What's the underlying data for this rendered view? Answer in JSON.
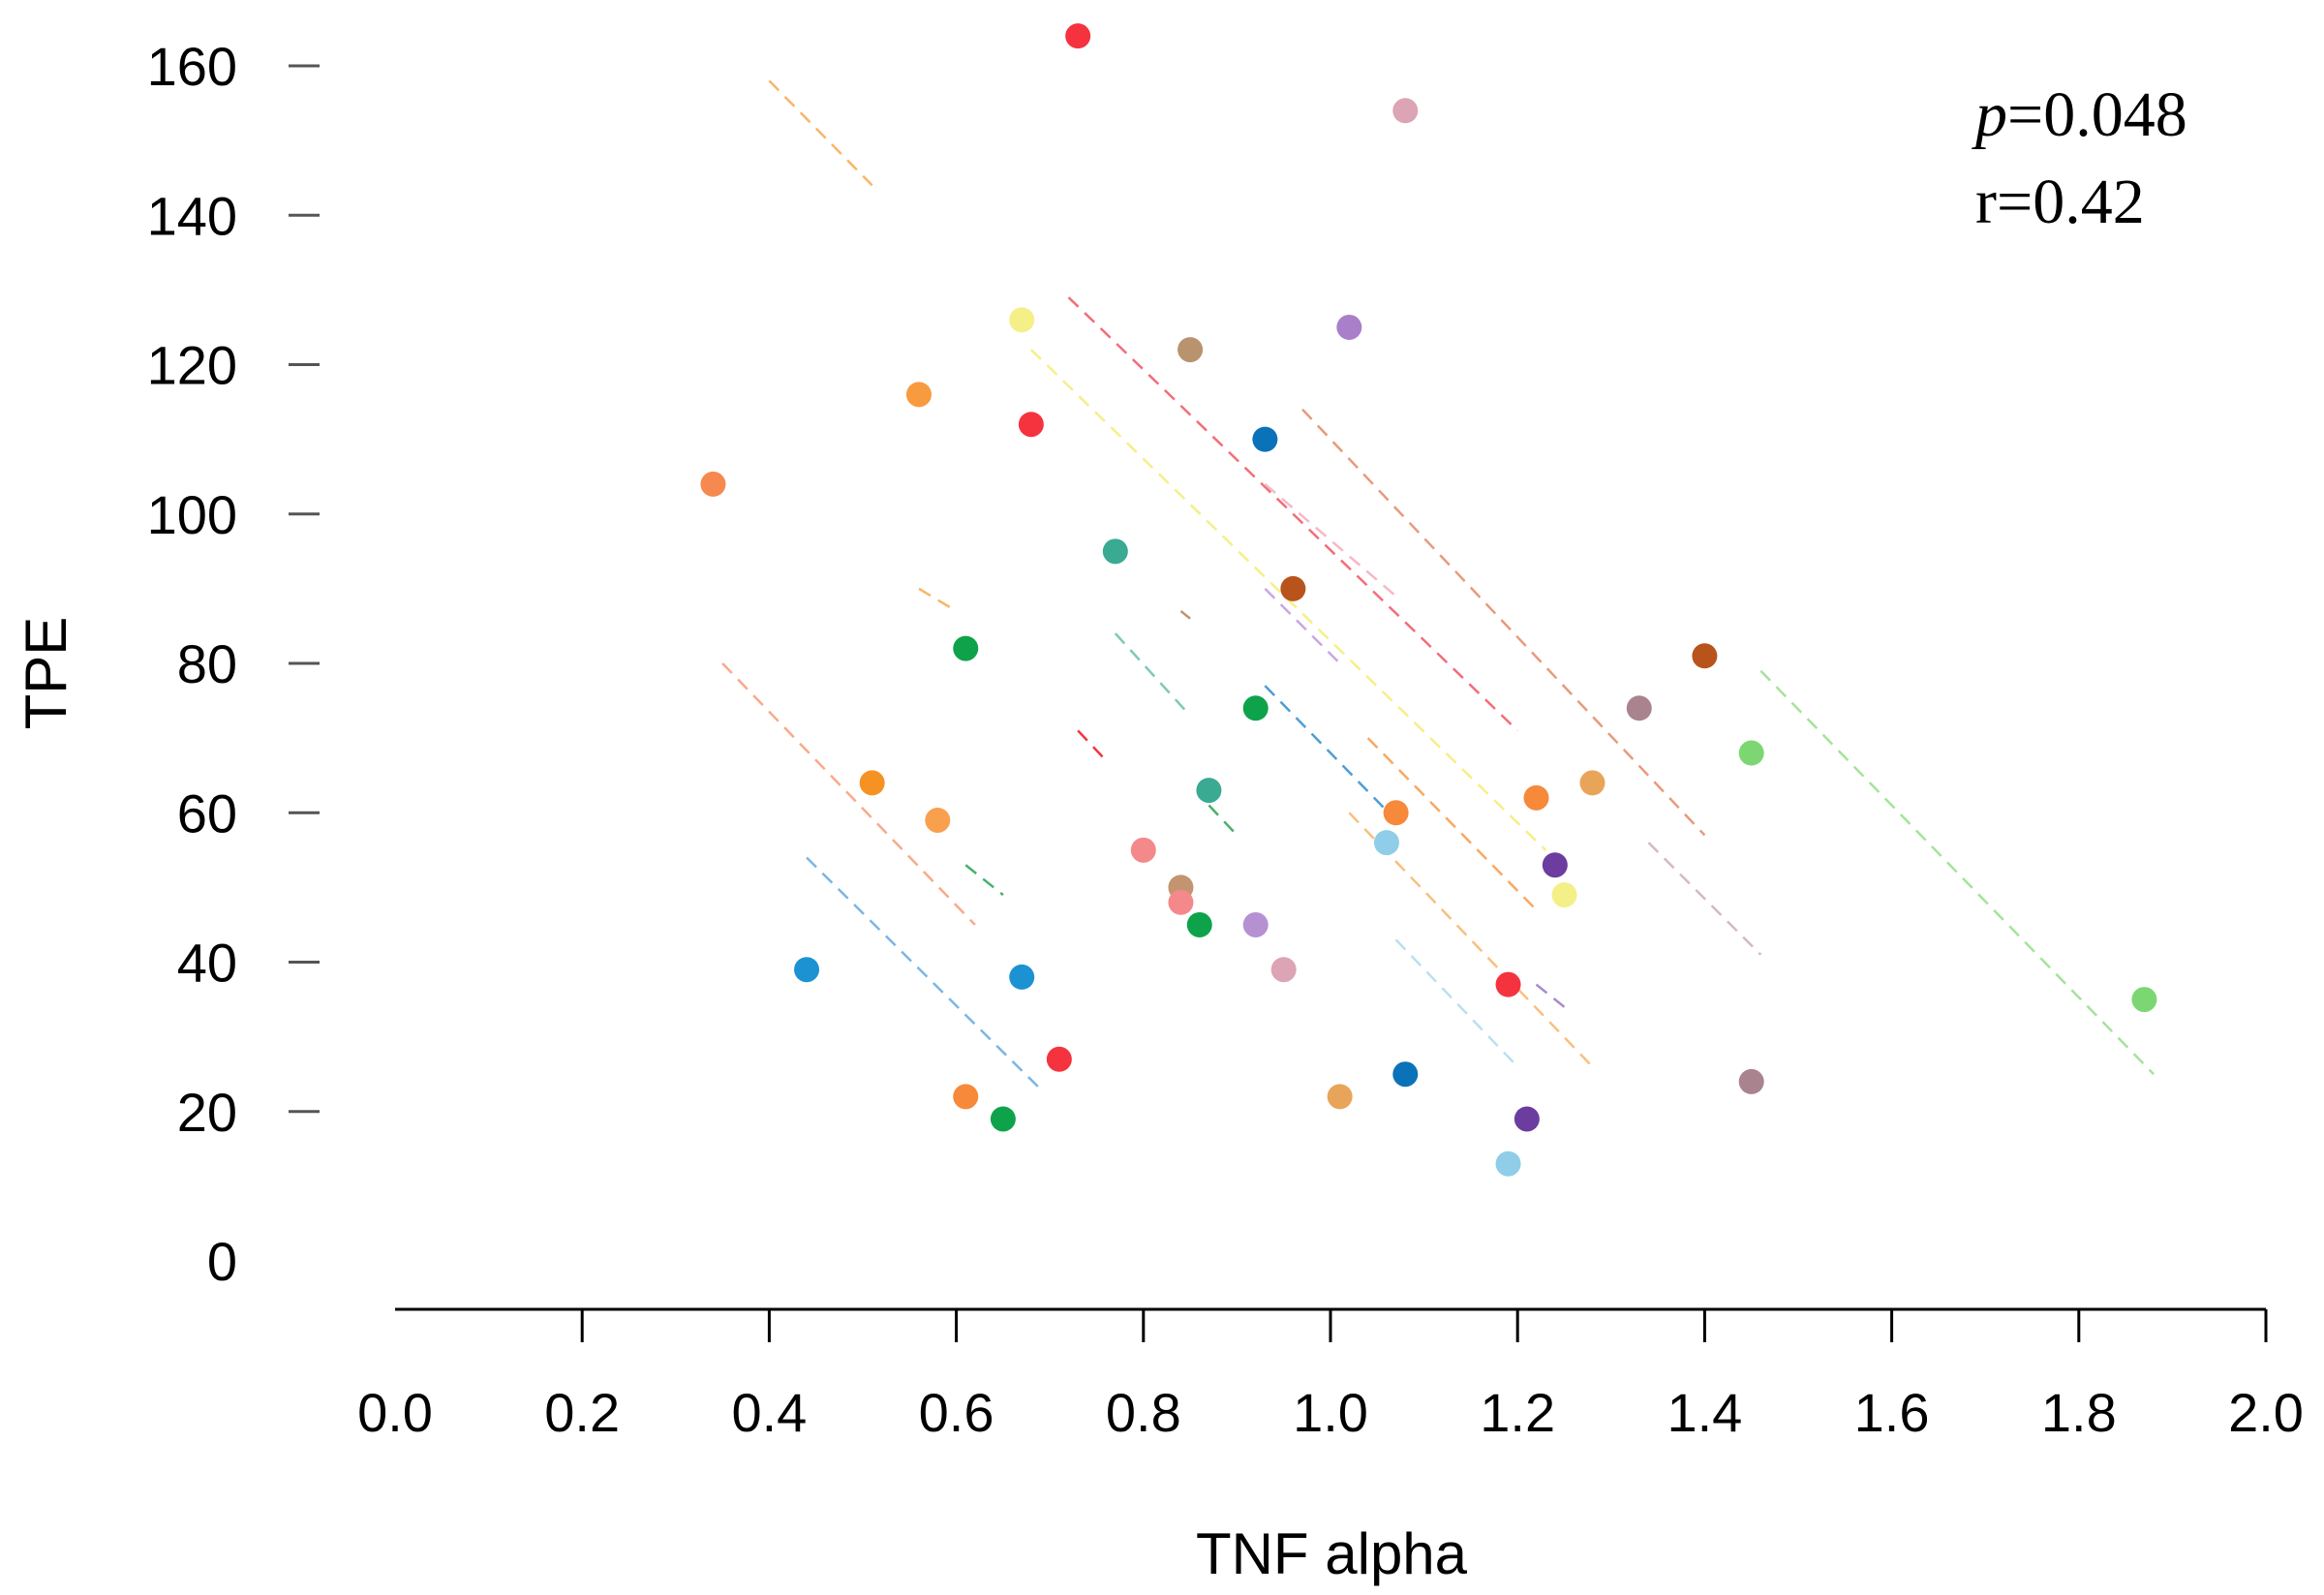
{
  "chart_data": {
    "type": "scatter",
    "title": "",
    "xlabel": "TNF alpha",
    "ylabel": "TPE",
    "xlim": [
      0.0,
      2.0
    ],
    "ylim": [
      0,
      160
    ],
    "x_ticks": [
      "0.0",
      "0.2",
      "0.4",
      "0.6",
      "0.8",
      "1.0",
      "1.2",
      "1.4",
      "1.6",
      "1.8",
      "2.0"
    ],
    "y_ticks": [
      "0",
      "20",
      "40",
      "60",
      "80",
      "100",
      "120",
      "140",
      "160"
    ],
    "grid": false,
    "annotations": {
      "p_symbol": "p",
      "p_value": "=0.048",
      "r_text": "r=0.42"
    },
    "points": [
      {
        "x": 0.73,
        "y": 164,
        "color": "#f5333f"
      },
      {
        "x": 1.08,
        "y": 154,
        "color": "#dca4b4"
      },
      {
        "x": 0.67,
        "y": 126,
        "color": "#f5ef88"
      },
      {
        "x": 1.02,
        "y": 125,
        "color": "#a97fc9"
      },
      {
        "x": 0.85,
        "y": 122,
        "color": "#b9926e"
      },
      {
        "x": 0.56,
        "y": 116,
        "color": "#f89a3e"
      },
      {
        "x": 0.68,
        "y": 112,
        "color": "#f5333f"
      },
      {
        "x": 0.93,
        "y": 110,
        "color": "#0a72b8"
      },
      {
        "x": 0.34,
        "y": 104,
        "color": "#f6894f"
      },
      {
        "x": 0.77,
        "y": 95,
        "color": "#3aaa93"
      },
      {
        "x": 0.96,
        "y": 90,
        "color": "#b8541b"
      },
      {
        "x": 0.61,
        "y": 82,
        "color": "#0ea34a"
      },
      {
        "x": 1.4,
        "y": 81,
        "color": "#b8541b"
      },
      {
        "x": 0.92,
        "y": 74,
        "color": "#0ea34a"
      },
      {
        "x": 1.33,
        "y": 74,
        "color": "#a9838e"
      },
      {
        "x": 1.45,
        "y": 68,
        "color": "#7cd772"
      },
      {
        "x": 0.51,
        "y": 64,
        "color": "#f69224"
      },
      {
        "x": 1.28,
        "y": 64,
        "color": "#e8a55a"
      },
      {
        "x": 0.87,
        "y": 63,
        "color": "#3aaa93"
      },
      {
        "x": 1.22,
        "y": 62,
        "color": "#f6893a"
      },
      {
        "x": 1.07,
        "y": 60,
        "color": "#f6893a"
      },
      {
        "x": 0.58,
        "y": 59,
        "color": "#f9a04f"
      },
      {
        "x": 1.06,
        "y": 56,
        "color": "#8fcde8"
      },
      {
        "x": 0.8,
        "y": 55,
        "color": "#f4898b"
      },
      {
        "x": 1.24,
        "y": 53,
        "color": "#6c3c9f"
      },
      {
        "x": 0.84,
        "y": 50,
        "color": "#c29470"
      },
      {
        "x": 1.25,
        "y": 49,
        "color": "#f5ef88"
      },
      {
        "x": 0.84,
        "y": 48,
        "color": "#f4898b"
      },
      {
        "x": 0.86,
        "y": 45,
        "color": "#0ea34a"
      },
      {
        "x": 0.92,
        "y": 45,
        "color": "#b691d2"
      },
      {
        "x": 0.95,
        "y": 39,
        "color": "#dca4b4"
      },
      {
        "x": 0.44,
        "y": 39,
        "color": "#1c92d3"
      },
      {
        "x": 0.67,
        "y": 38,
        "color": "#1c92d3"
      },
      {
        "x": 1.19,
        "y": 37,
        "color": "#f5333f"
      },
      {
        "x": 1.87,
        "y": 35,
        "color": "#7cd772"
      },
      {
        "x": 0.71,
        "y": 27,
        "color": "#f5333f"
      },
      {
        "x": 1.08,
        "y": 25,
        "color": "#0a72b8"
      },
      {
        "x": 1.45,
        "y": 24,
        "color": "#a9838e"
      },
      {
        "x": 0.61,
        "y": 22,
        "color": "#f6893a"
      },
      {
        "x": 1.01,
        "y": 22,
        "color": "#e8a55a"
      },
      {
        "x": 1.21,
        "y": 19,
        "color": "#6c3c9f"
      },
      {
        "x": 0.65,
        "y": 19,
        "color": "#0ea34a"
      },
      {
        "x": 1.19,
        "y": 13,
        "color": "#8fcde8"
      }
    ],
    "dashed_lines": [
      {
        "x1": 0.4,
        "y1": 158,
        "x2": 0.51,
        "y2": 144,
        "color": "#f9b56a"
      },
      {
        "x1": 0.72,
        "y1": 129,
        "x2": 1.2,
        "y2": 71,
        "color": "#f26d78"
      },
      {
        "x1": 0.68,
        "y1": 122,
        "x2": 1.23,
        "y2": 55,
        "color": "#f5ef88"
      },
      {
        "x1": 0.97,
        "y1": 114,
        "x2": 1.4,
        "y2": 57,
        "color": "#e89a7c"
      },
      {
        "x1": 0.93,
        "y1": 104,
        "x2": 1.07,
        "y2": 89,
        "color": "#f4b9c4"
      },
      {
        "x1": 0.56,
        "y1": 90,
        "x2": 0.6,
        "y2": 87,
        "color": "#f9b56a"
      },
      {
        "x1": 0.84,
        "y1": 87,
        "x2": 0.85,
        "y2": 86,
        "color": "#c29470"
      },
      {
        "x1": 0.77,
        "y1": 84,
        "x2": 0.85,
        "y2": 73,
        "color": "#7ec9b7"
      },
      {
        "x1": 0.93,
        "y1": 90,
        "x2": 1.01,
        "y2": 80,
        "color": "#c8a8e0"
      },
      {
        "x1": 0.35,
        "y1": 80,
        "x2": 0.62,
        "y2": 45,
        "color": "#f9a98a"
      },
      {
        "x1": 0.73,
        "y1": 71,
        "x2": 0.76,
        "y2": 67,
        "color": "#f5333f"
      },
      {
        "x1": 0.93,
        "y1": 77,
        "x2": 1.07,
        "y2": 59,
        "color": "#4d9ed3"
      },
      {
        "x1": 1.04,
        "y1": 70,
        "x2": 1.22,
        "y2": 47,
        "color": "#f9a860"
      },
      {
        "x1": 0.87,
        "y1": 61,
        "x2": 0.9,
        "y2": 57,
        "color": "#4ab06b"
      },
      {
        "x1": 1.46,
        "y1": 79,
        "x2": 1.88,
        "y2": 25,
        "color": "#a4e39a"
      },
      {
        "x1": 0.61,
        "y1": 53,
        "x2": 0.65,
        "y2": 49,
        "color": "#4ab06b"
      },
      {
        "x1": 1.34,
        "y1": 56,
        "x2": 1.46,
        "y2": 41,
        "color": "#d4b8c8"
      },
      {
        "x1": 1.02,
        "y1": 60,
        "x2": 1.28,
        "y2": 26,
        "color": "#f9bf80"
      },
      {
        "x1": 0.44,
        "y1": 54,
        "x2": 0.69,
        "y2": 23,
        "color": "#7ab6e6"
      },
      {
        "x1": 1.07,
        "y1": 43,
        "x2": 1.2,
        "y2": 26,
        "color": "#b8e0f0"
      },
      {
        "x1": 1.22,
        "y1": 37,
        "x2": 1.25,
        "y2": 34,
        "color": "#a98bd0"
      }
    ]
  }
}
